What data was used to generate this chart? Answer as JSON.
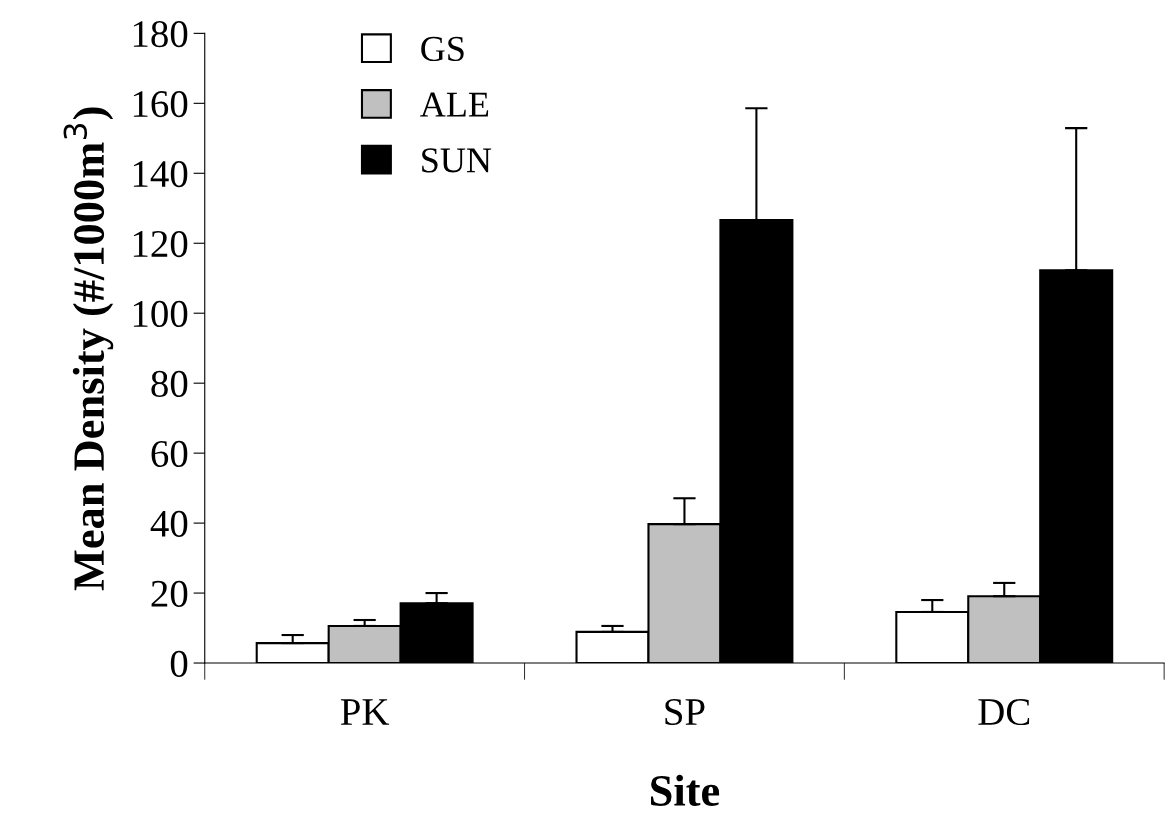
{
  "chart_data": {
    "type": "bar",
    "xlabel": "Site",
    "ylabel": "Mean Density (#/1000m$^{3}$)",
    "categories": [
      "PK",
      "SP",
      "DC"
    ],
    "series": [
      {
        "name": "GS",
        "color": "#ffffff",
        "values": [
          5.7,
          8.9,
          14.6
        ],
        "errors": [
          [
            5.7,
            8
          ],
          [
            8.9,
            10.6
          ],
          [
            14.6,
            18
          ]
        ]
      },
      {
        "name": "ALE",
        "color": "#c0c0c0",
        "values": [
          10.6,
          39.7,
          19.1
        ],
        "errors": [
          [
            10.6,
            12.3
          ],
          [
            39.7,
            47.1
          ],
          [
            19.1,
            22.9
          ]
        ]
      },
      {
        "name": "SUN",
        "color": "#000000",
        "values": [
          17.1,
          126.6,
          112.3
        ],
        "errors": [
          [
            17.1,
            20
          ],
          [
            126.6,
            158.6
          ],
          [
            112.3,
            152.9
          ]
        ]
      }
    ],
    "ylim": [
      0,
      180
    ],
    "yticks": [
      0,
      20,
      40,
      60,
      80,
      100,
      120,
      140,
      160,
      180
    ],
    "grid": false,
    "legend": "top left"
  }
}
